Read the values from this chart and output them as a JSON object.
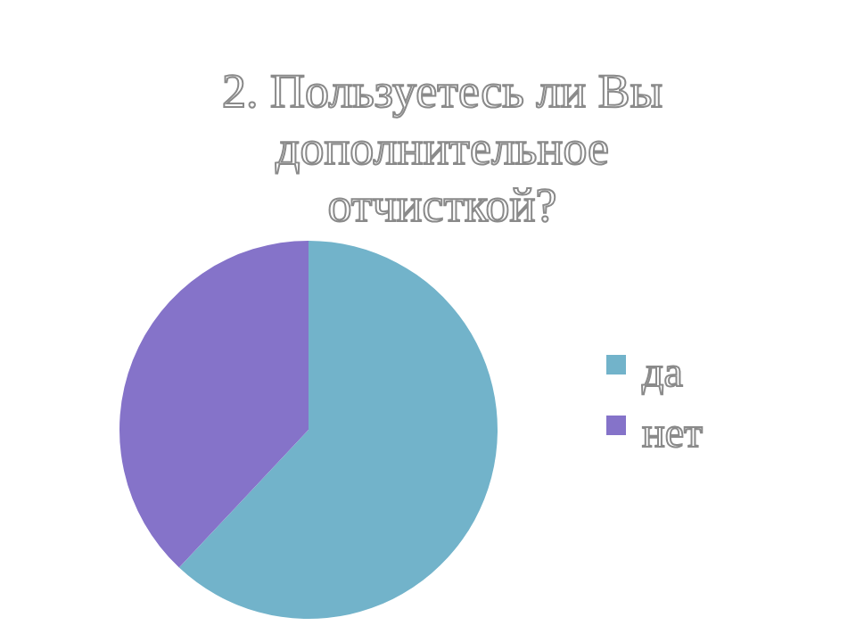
{
  "chart_data": {
    "type": "pie",
    "title": "2. Пользуетесь ли Вы дополнительное отчисткой?",
    "categories": [
      "да",
      "нет"
    ],
    "values": [
      62,
      38
    ],
    "colors": [
      "#72b3ca",
      "#8573c9"
    ],
    "legend": "right"
  }
}
